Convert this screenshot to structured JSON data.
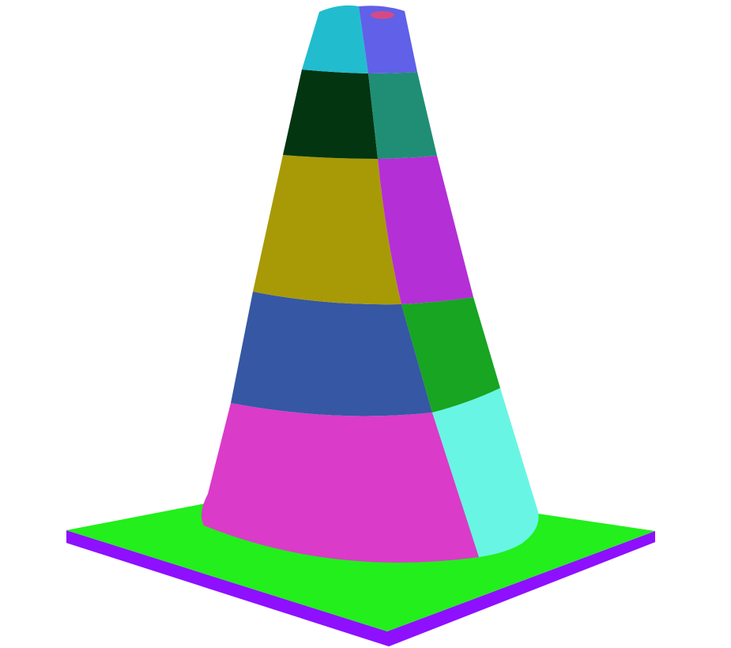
{
  "scene": {
    "subject": "traffic-cone-segmented-render",
    "background_color": "#ffffff",
    "colors": {
      "base_top": "#22ef1c",
      "base_side": "#8e10ff",
      "cap_left": "#22bccf",
      "cap_right": "#6060e8",
      "cap_hole": "#d34b86",
      "band2_left": "#023510",
      "band2_right": "#1f8e75",
      "band3_left": "#a89a06",
      "band3_right": "#b42fd6",
      "band4_left": "#3657a3",
      "band4_right": "#17a522",
      "band5_left": "#da3bc9",
      "band5_right": "#69f5e4"
    }
  }
}
